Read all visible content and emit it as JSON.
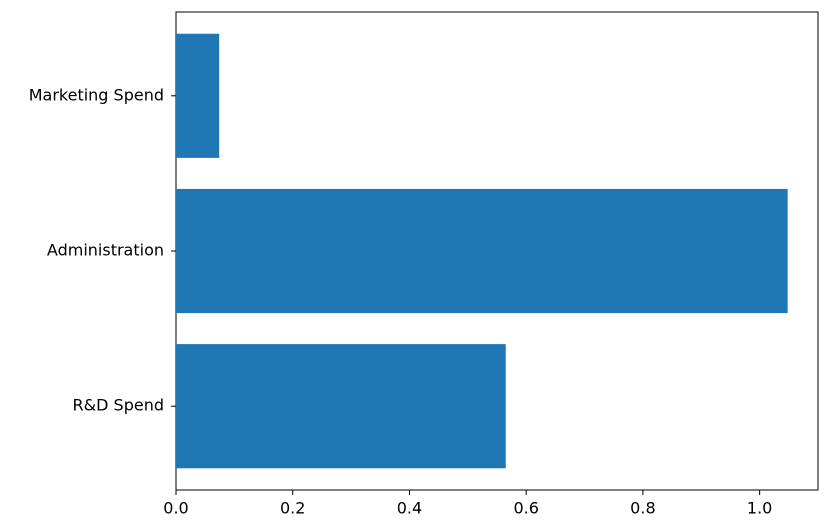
{
  "chart_data": {
    "type": "barh",
    "categories": [
      "R&D Spend",
      "Administration",
      "Marketing Spend"
    ],
    "values": [
      0.565,
      1.048,
      0.074
    ],
    "color": "#1f77b4",
    "xlim": [
      0,
      1.1
    ],
    "xticks": [
      {
        "value": 0,
        "label": "0.0"
      },
      {
        "value": 0.2,
        "label": "0.2"
      },
      {
        "value": 0.4,
        "label": "0.4"
      },
      {
        "value": 0.6,
        "label": "0.6"
      },
      {
        "value": 0.8,
        "label": "0.8"
      },
      {
        "value": 1,
        "label": "1.0"
      }
    ],
    "grid": false
  }
}
